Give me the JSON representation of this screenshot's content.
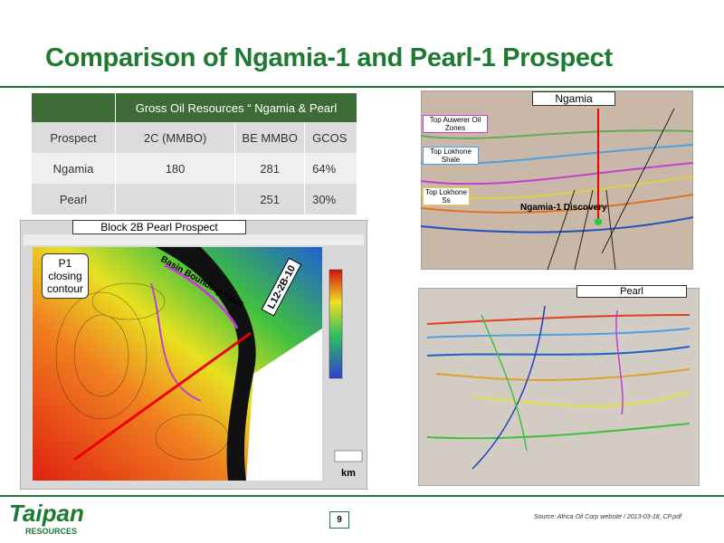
{
  "header": {
    "title": "Comparison of Ngamia-1 and Pearl-1 Prospect"
  },
  "table": {
    "caption": "Gross Oil Resources “ Ngamia & Pearl",
    "columns": [
      "Prospect",
      "2C (MMBO)",
      "BE MMBO",
      "GCOS"
    ],
    "rows": [
      [
        "Ngamia",
        "180",
        "281",
        "64%"
      ],
      [
        "Pearl",
        null,
        "251",
        "30%"
      ]
    ]
  },
  "map": {
    "title": "Block 2B Pearl Prospect",
    "callout": "P1 closing contour",
    "fault": "Basin Bounding Fault",
    "line": "L12-2B-10",
    "scale": "km"
  },
  "ngamia": {
    "title": "Ngamia",
    "labels": [
      "Top Auwerer Oil Zones",
      "Top Lokhone Shale",
      "Top Lokhone Ss"
    ],
    "discovery": "Ngamia-1 Discovery"
  },
  "pearl": {
    "title": "Pearl"
  },
  "footer": {
    "page": "9",
    "source": "Source: Africa Oil Corp website / 2013-03-18_CP.pdf",
    "logo": "Taipan",
    "logo_sub": "RESOURCES"
  }
}
